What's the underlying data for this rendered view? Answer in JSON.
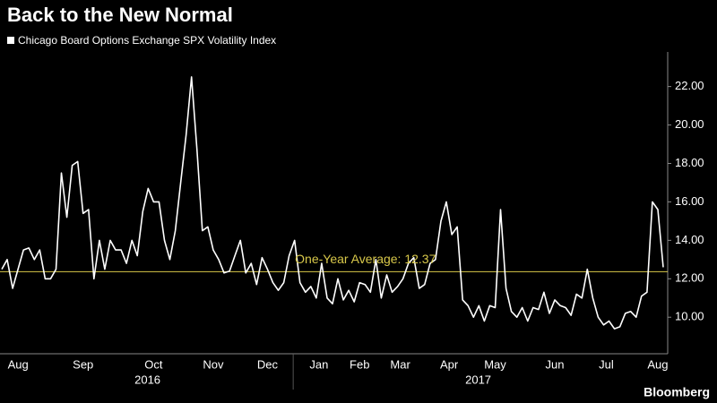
{
  "chart_data": {
    "type": "line",
    "title": "Back to the New Normal",
    "source": "Bloomberg",
    "series": [
      {
        "name": "Chicago Board Options Exchange SPX Volatility Index",
        "color": "#ffffff",
        "values": [
          12.5,
          13.0,
          11.5,
          12.5,
          13.5,
          13.6,
          13.0,
          13.5,
          12.0,
          12.0,
          12.5,
          17.5,
          15.2,
          17.9,
          18.1,
          15.4,
          15.6,
          12.0,
          14.0,
          12.5,
          14.0,
          13.5,
          13.5,
          12.8,
          14.0,
          13.2,
          15.5,
          16.7,
          16.0,
          16.0,
          14.0,
          13.0,
          14.5,
          17.0,
          19.5,
          22.5,
          18.7,
          14.5,
          14.7,
          13.5,
          13.0,
          12.3,
          12.4,
          13.2,
          14.0,
          12.3,
          12.8,
          11.7,
          13.1,
          12.5,
          11.8,
          11.4,
          11.8,
          13.2,
          14.0,
          11.8,
          11.3,
          11.6,
          11.0,
          12.8,
          11.0,
          10.7,
          12.0,
          10.9,
          11.4,
          10.8,
          11.8,
          11.7,
          11.3,
          13.0,
          11.0,
          12.2,
          11.3,
          11.6,
          12.0,
          12.8,
          13.1,
          11.5,
          11.7,
          12.8,
          13.0,
          15.0,
          16.0,
          14.3,
          14.7,
          10.9,
          10.6,
          10.0,
          10.6,
          9.8,
          10.6,
          10.5,
          15.6,
          11.5,
          10.3,
          10.0,
          10.5,
          9.8,
          10.5,
          10.4,
          11.3,
          10.2,
          10.9,
          10.6,
          10.5,
          10.1,
          11.2,
          11.0,
          12.5,
          11.0,
          10.0,
          9.6,
          9.8,
          9.4,
          9.5,
          10.2,
          10.3,
          10.0,
          11.1,
          11.3,
          16.0,
          15.6,
          12.6
        ]
      }
    ],
    "reference": {
      "value": 12.37,
      "label": "One-Year Average: 12.37",
      "color": "#d8c84a"
    },
    "xticks": [
      {
        "value": 3,
        "label": "Aug"
      },
      {
        "value": 15,
        "label": "Sep"
      },
      {
        "value": 28,
        "label": "Oct"
      },
      {
        "value": 39,
        "label": "Nov"
      },
      {
        "value": 49,
        "label": "Dec"
      },
      {
        "value": 58.5,
        "label": "Jan"
      },
      {
        "value": 66,
        "label": "Feb"
      },
      {
        "value": 73.5,
        "label": "Mar"
      },
      {
        "value": 82.5,
        "label": "Apr"
      },
      {
        "value": 91,
        "label": "May"
      },
      {
        "value": 102,
        "label": "Jun"
      },
      {
        "value": 111.5,
        "label": "Jul"
      },
      {
        "value": 121,
        "label": "Aug"
      }
    ],
    "years": [
      "2016",
      "2017"
    ],
    "ylim": [
      8.1,
      23.8
    ],
    "yticks": [
      {
        "value": 10,
        "label": "10.00"
      },
      {
        "value": 12,
        "label": "12.00"
      },
      {
        "value": 14,
        "label": "14.00"
      },
      {
        "value": 16,
        "label": "16.00"
      },
      {
        "value": 18,
        "label": "18.00"
      },
      {
        "value": 20,
        "label": "20.00"
      },
      {
        "value": 22,
        "label": "22.00"
      }
    ]
  }
}
